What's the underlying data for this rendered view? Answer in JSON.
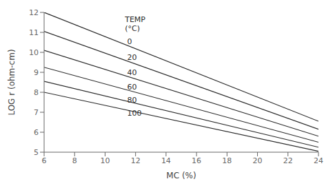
{
  "chart_data": {
    "type": "line",
    "x": [
      6,
      24
    ],
    "series": [
      {
        "name": "0",
        "values": [
          12.0,
          6.55
        ]
      },
      {
        "name": "20",
        "values": [
          11.05,
          6.15
        ]
      },
      {
        "name": "40",
        "values": [
          10.1,
          5.8
        ]
      },
      {
        "name": "60",
        "values": [
          9.25,
          5.5
        ]
      },
      {
        "name": "80",
        "values": [
          8.55,
          5.25
        ]
      },
      {
        "name": "100",
        "values": [
          8.0,
          5.05
        ]
      }
    ],
    "color": "#2a2a2a",
    "xlabel": "MC (%)",
    "ylabel": "LOG r (ohm-cm)",
    "xlim": [
      6,
      24
    ],
    "ylim": [
      5,
      12
    ],
    "xticks": [
      6,
      8,
      10,
      12,
      14,
      16,
      18,
      20,
      22,
      24
    ],
    "yticks": [
      5,
      6,
      7,
      8,
      9,
      10,
      11,
      12
    ],
    "annotations": [
      {
        "text": "TEMP\n(°C)",
        "x": 11.3,
        "y": 11.85,
        "align": "top"
      },
      {
        "text": "0",
        "x": 11.45,
        "y": 10.55,
        "align": "center"
      },
      {
        "text": "20",
        "x": 11.45,
        "y": 9.75,
        "align": "center"
      },
      {
        "text": "40",
        "x": 11.45,
        "y": 9.0,
        "align": "center"
      },
      {
        "text": "60",
        "x": 11.45,
        "y": 8.28,
        "align": "center"
      },
      {
        "text": "80",
        "x": 11.45,
        "y": 7.62,
        "align": "center"
      },
      {
        "text": "100",
        "x": 11.45,
        "y": 6.95,
        "align": "center"
      }
    ]
  }
}
